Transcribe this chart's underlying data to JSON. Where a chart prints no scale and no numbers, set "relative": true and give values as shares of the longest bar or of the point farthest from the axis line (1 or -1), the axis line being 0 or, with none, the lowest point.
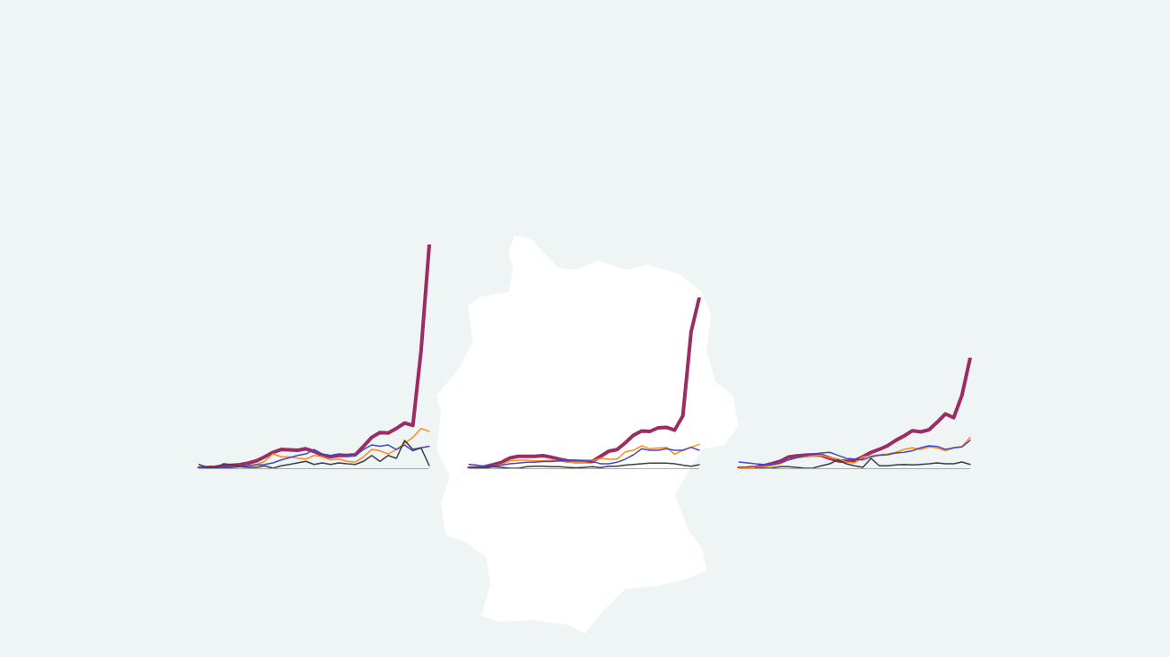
{
  "chart_data": [
    {
      "type": "line",
      "relative": true,
      "categories": [
        null,
        null,
        null,
        null,
        null,
        null,
        null,
        null,
        null,
        null,
        null,
        null,
        null,
        null,
        null,
        null,
        null,
        null,
        null,
        null,
        null,
        null,
        null,
        null,
        null,
        null,
        null,
        null,
        null
      ],
      "series": [
        {
          "color": "#3c3f46",
          "values": [
            0.017,
            0.004,
            0.001,
            0.02,
            0.017,
            0.007,
            0.004,
            0.004,
            0.011,
            0,
            0.011,
            0.017,
            0.024,
            0.031,
            0.017,
            0.024,
            0.017,
            0.024,
            0.02,
            0.017,
            0.031,
            0.057,
            0.031,
            0.057,
            0.044,
            0.124,
            0.084,
            0.091,
            0.011
          ]
        },
        {
          "color": "#4646c8",
          "values": [
            0,
            0,
            0,
            0.001,
            0.003,
            0.007,
            0.011,
            0.015,
            0.017,
            0.024,
            0.037,
            0.047,
            0.057,
            0.064,
            0.084,
            0.064,
            0.057,
            0.064,
            0.06,
            0.057,
            0.084,
            0.104,
            0.098,
            0.104,
            0.084,
            0.104,
            0.078,
            0.091,
            0.098
          ]
        },
        {
          "color": "#ff8c1a",
          "values": [
            null,
            null,
            null,
            null,
            null,
            0.007,
            0.011,
            0.017,
            0.031,
            0.064,
            0.051,
            0.051,
            0.045,
            0.041,
            0.057,
            0.051,
            0.037,
            0.041,
            0.031,
            0.028,
            0.051,
            0.084,
            0.078,
            0.064,
            0.084,
            0.111,
            0.138,
            0.178,
            0.164
          ]
        },
        {
          "color": "#9b2c64",
          "values": [
            0,
            0.003,
            0.005,
            0.009,
            0.013,
            0.016,
            0.023,
            0.033,
            0.051,
            0.071,
            0.084,
            0.082,
            0.08,
            0.087,
            0.075,
            0.057,
            0.051,
            0.057,
            0.057,
            0.06,
            0.098,
            0.138,
            0.16,
            0.158,
            0.178,
            0.202,
            0.191,
            0.525,
            1
          ]
        }
      ]
    },
    {
      "type": "line",
      "relative": true,
      "categories": [
        null,
        null,
        null,
        null,
        null,
        null,
        null,
        null,
        null,
        null,
        null,
        null,
        null,
        null,
        null,
        null,
        null,
        null,
        null,
        null,
        null,
        null,
        null,
        null,
        null,
        null,
        null,
        null,
        null
      ],
      "series": [
        {
          "color": "#3c3f46",
          "values": [
            0,
            0,
            0.002,
            0.009,
            0.005,
            0,
            0,
            0.009,
            0.012,
            0.012,
            0.009,
            0.009,
            0.005,
            0.002,
            0.005,
            0.009,
            0.004,
            0.012,
            0.012,
            0.018,
            0.023,
            0.026,
            0.03,
            0.03,
            0.03,
            0.026,
            0.018,
            0.012,
            0.021
          ]
        },
        {
          "color": "#4646c8",
          "values": [
            0.023,
            0.018,
            0.009,
            0.012,
            0.018,
            0.026,
            0.03,
            0.035,
            0.035,
            0.04,
            0.039,
            0.044,
            0.044,
            0.047,
            0.044,
            0.04,
            0.026,
            0.026,
            0.035,
            0.053,
            0.079,
            0.114,
            0.105,
            0.105,
            0.114,
            0.105,
            0.105,
            0.123,
            0.105
          ]
        },
        {
          "color": "#ff8c1a",
          "values": [
            null,
            null,
            null,
            0.012,
            0.023,
            0.044,
            0.047,
            0.047,
            0.044,
            0.044,
            0.047,
            0.044,
            0.035,
            0.035,
            0.035,
            0.044,
            0.058,
            0.053,
            0.053,
            0.096,
            0.105,
            0.132,
            0.114,
            0.118,
            0.123,
            0.082,
            0.105,
            0.123,
            0.14
          ]
        },
        {
          "color": "#9b2c64",
          "values": [
            0,
            0.002,
            0.009,
            0.021,
            0.035,
            0.061,
            0.07,
            0.07,
            0.07,
            0.074,
            0.065,
            0.053,
            0.044,
            0.04,
            0.04,
            0.04,
            0.07,
            0.1,
            0.109,
            0.149,
            0.193,
            0.219,
            0.216,
            0.237,
            0.24,
            0.223,
            0.307,
            0.798,
            1
          ]
        }
      ]
    },
    {
      "type": "line",
      "relative": true,
      "categories": [
        null,
        null,
        null,
        null,
        null,
        null,
        null,
        null,
        null,
        null,
        null,
        null,
        null,
        null,
        null,
        null,
        null,
        null,
        null,
        null,
        null,
        null,
        null,
        null,
        null,
        null,
        null,
        null,
        null
      ],
      "series": [
        {
          "color": "#3c3f46",
          "values": [
            null,
            null,
            0,
            0,
            0.003,
            0.014,
            0.014,
            0.008,
            0,
            0.003,
            0.022,
            0.041,
            0.076,
            0.041,
            0.022,
            0.008,
            0.09,
            0.022,
            0.022,
            0.03,
            0.035,
            0.03,
            0.035,
            0.041,
            0.049,
            0.041,
            0.041,
            0.057,
            0.035
          ]
        },
        {
          "color": "#4646c8",
          "values": [
            0.057,
            0.049,
            0.041,
            0.035,
            0.035,
            0.049,
            0.076,
            0.095,
            0.111,
            0.13,
            0.139,
            0.144,
            0.117,
            0.09,
            0.084,
            0.076,
            0.103,
            0.117,
            0.122,
            0.139,
            0.144,
            0.158,
            0.185,
            0.204,
            0.198,
            0.171,
            0.185,
            0.193,
            0.253
          ]
        },
        {
          "color": "#ff8c1a",
          "values": [
            0,
            0,
            0.008,
            0.014,
            0.022,
            0.041,
            0.076,
            0.095,
            0.103,
            0.111,
            0.117,
            0.095,
            0.084,
            0.057,
            0.049,
            0.103,
            0.111,
            0.122,
            0.13,
            0.144,
            0.171,
            0.185,
            0.171,
            0.193,
            0.185,
            0.158,
            0.185,
            0.198,
            0.28
          ]
        },
        {
          "color": "#9b2c64",
          "values": [
            0,
            0.003,
            0.008,
            0.022,
            0.041,
            0.063,
            0.101,
            0.111,
            0.117,
            0.122,
            0.117,
            0.09,
            0.068,
            0.063,
            0.068,
            0.103,
            0.144,
            0.171,
            0.204,
            0.253,
            0.293,
            0.34,
            0.329,
            0.348,
            0.416,
            0.492,
            0.457,
            0.66,
            1
          ]
        }
      ]
    }
  ]
}
